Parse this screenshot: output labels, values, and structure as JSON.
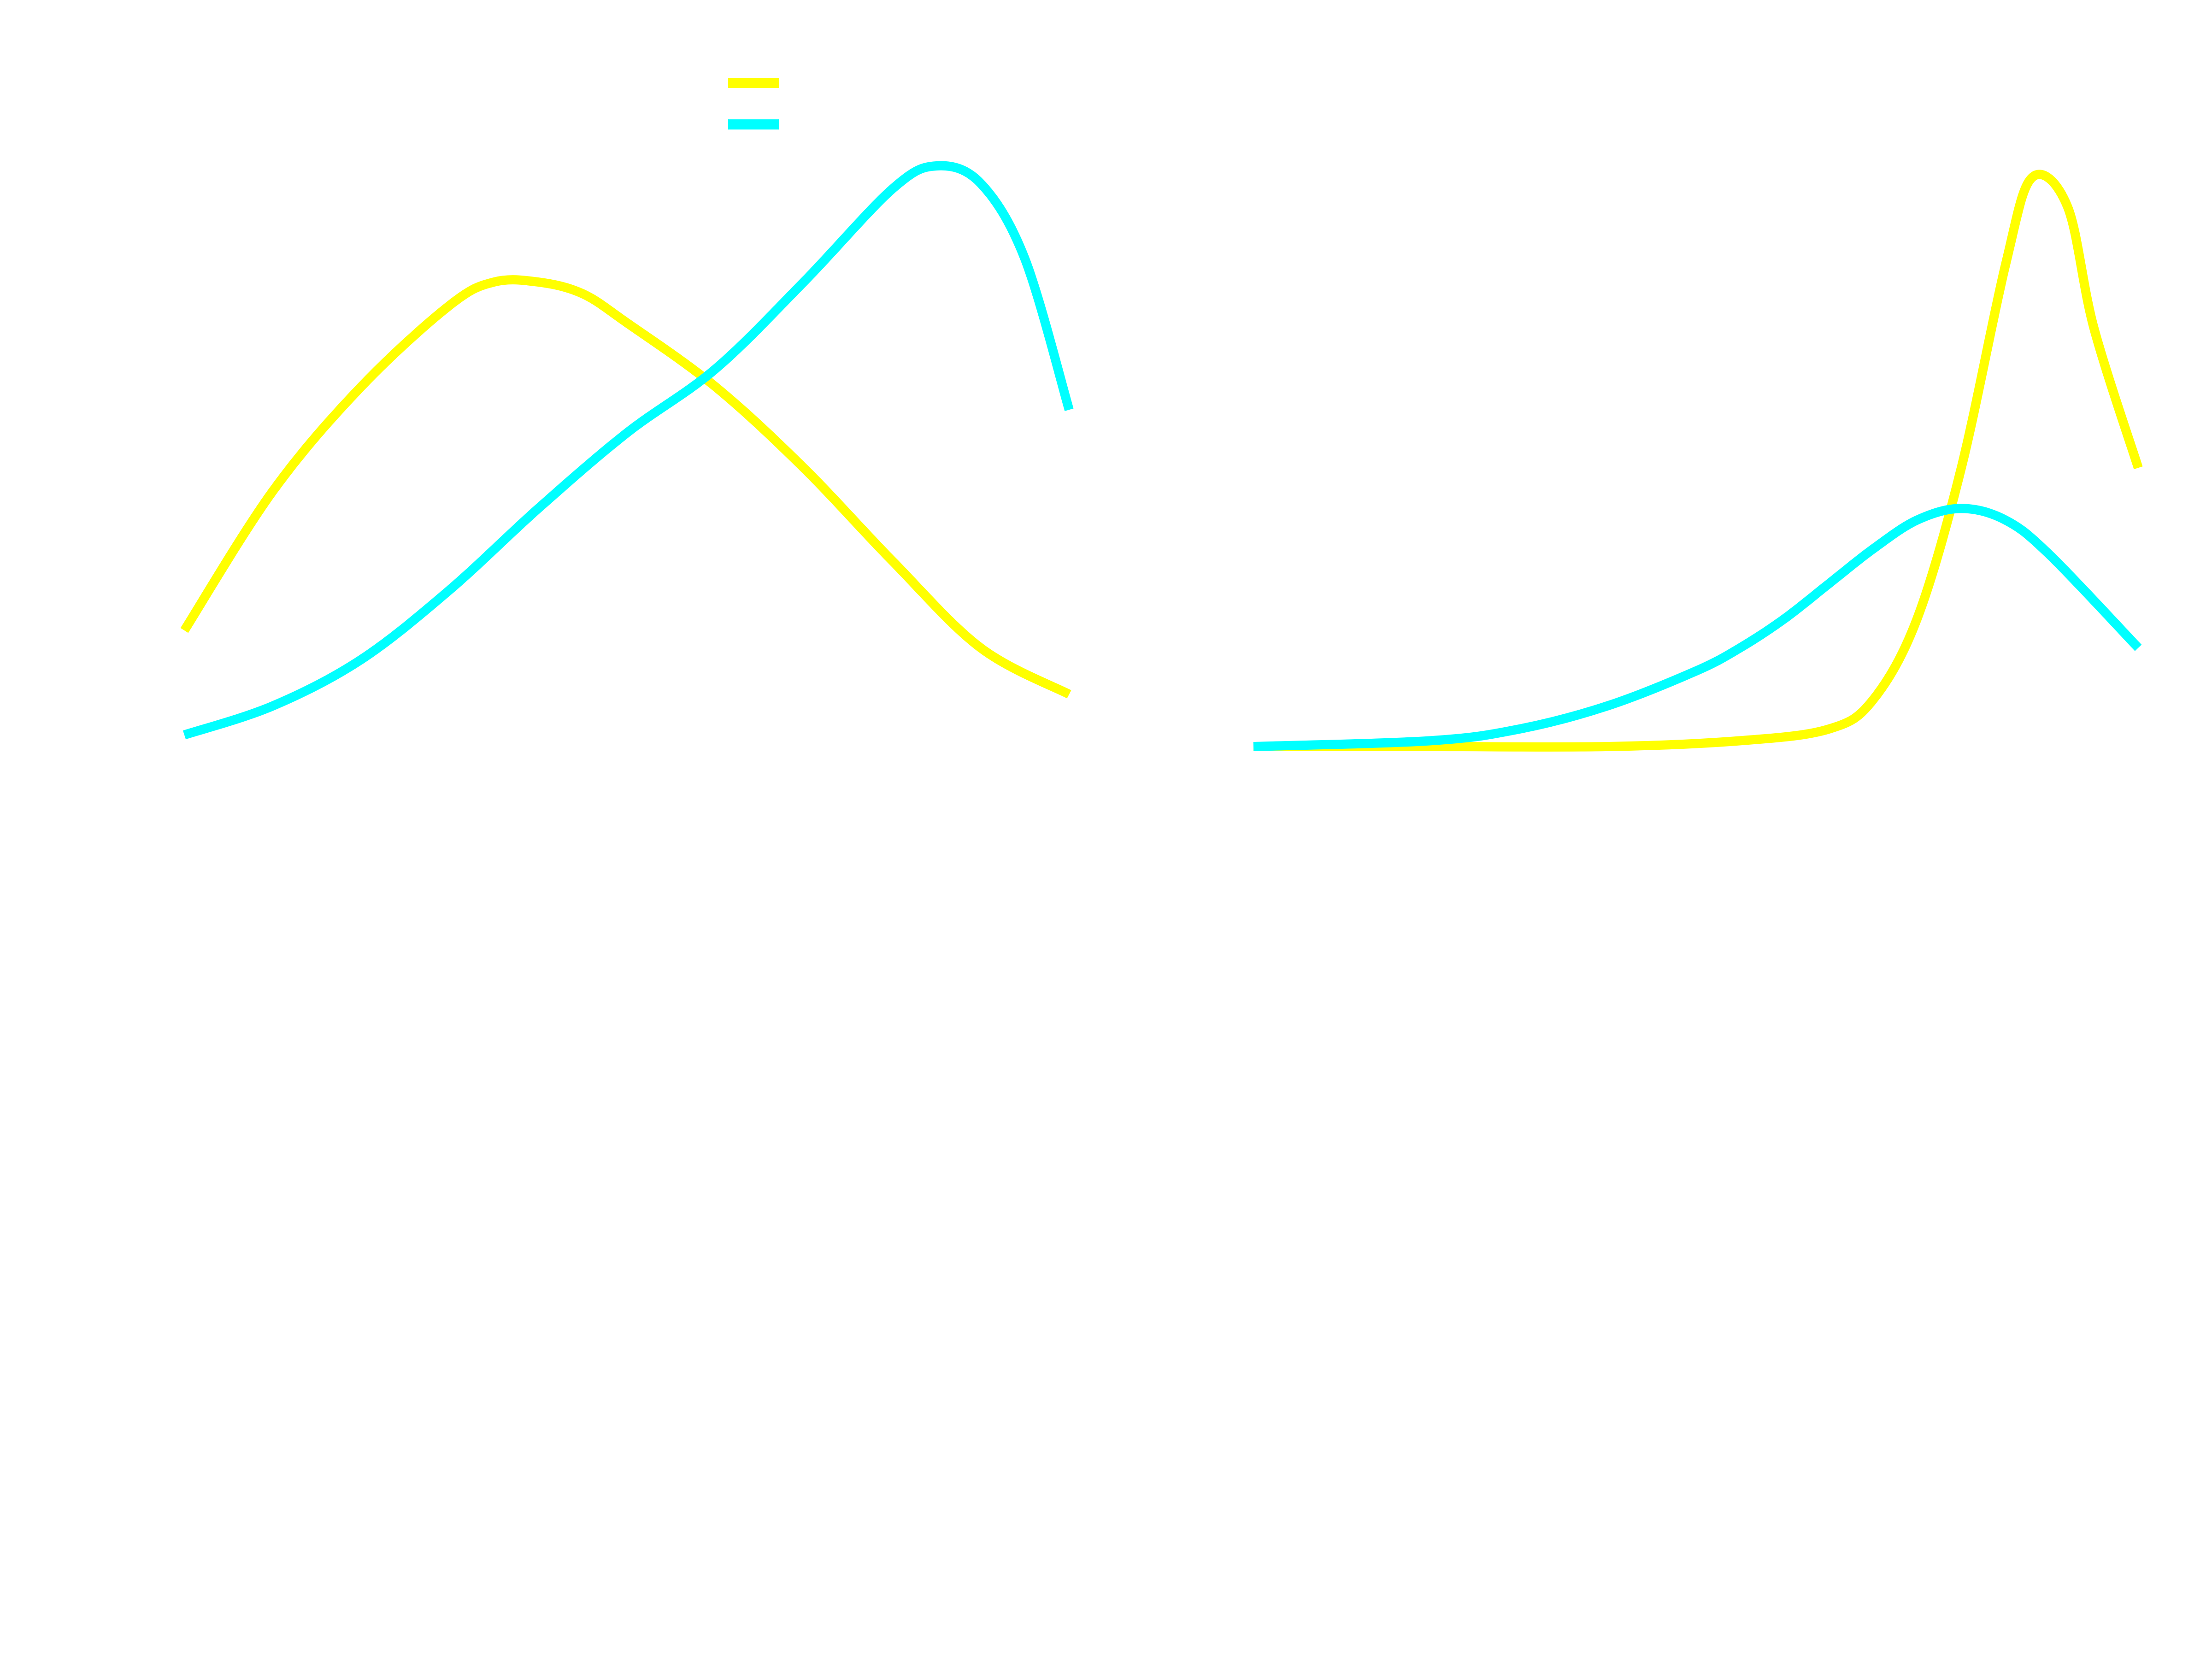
{
  "chart_data": [
    {
      "type": "line",
      "title": "",
      "xlabel": "",
      "ylabel": "",
      "xlim": [
        0,
        1
      ],
      "ylim": [
        0,
        1
      ],
      "grid": false,
      "legend": {
        "placement": "top-center",
        "entries": [
          "",
          ""
        ]
      },
      "series": [
        {
          "color": "#ffff00",
          "x": [
            0.0,
            0.1,
            0.2,
            0.3,
            0.35,
            0.4,
            0.45,
            0.5,
            0.6,
            0.7,
            0.8,
            0.9,
            1.0
          ],
          "y": [
            0.2,
            0.44,
            0.62,
            0.76,
            0.8,
            0.8,
            0.78,
            0.73,
            0.62,
            0.48,
            0.32,
            0.17,
            0.09
          ]
        },
        {
          "color": "#00ffff",
          "x": [
            0.0,
            0.1,
            0.2,
            0.3,
            0.4,
            0.5,
            0.6,
            0.7,
            0.8,
            0.85,
            0.9,
            0.95,
            1.0
          ],
          "y": [
            0.02,
            0.07,
            0.15,
            0.27,
            0.41,
            0.54,
            0.65,
            0.8,
            0.96,
            1.0,
            0.97,
            0.84,
            0.58
          ]
        }
      ]
    },
    {
      "type": "line",
      "title": "",
      "xlabel": "",
      "ylabel": "",
      "xlim": [
        0,
        1
      ],
      "ylim": [
        0,
        1
      ],
      "grid": false,
      "legend": null,
      "series": [
        {
          "color": "#ffff00",
          "x": [
            0.0,
            0.2,
            0.4,
            0.55,
            0.65,
            0.7,
            0.75,
            0.8,
            0.85,
            0.88,
            0.92,
            0.95,
            1.0
          ],
          "y": [
            0.0,
            0.0,
            0.0,
            0.01,
            0.03,
            0.08,
            0.22,
            0.48,
            0.83,
            0.98,
            0.93,
            0.72,
            0.48
          ]
        },
        {
          "color": "#00ffff",
          "x": [
            0.0,
            0.2,
            0.3,
            0.4,
            0.5,
            0.55,
            0.6,
            0.65,
            0.7,
            0.75,
            0.8,
            0.85,
            0.9,
            1.0
          ],
          "y": [
            0.0,
            0.01,
            0.03,
            0.07,
            0.13,
            0.17,
            0.22,
            0.28,
            0.34,
            0.39,
            0.41,
            0.39,
            0.33,
            0.17
          ]
        }
      ]
    }
  ]
}
